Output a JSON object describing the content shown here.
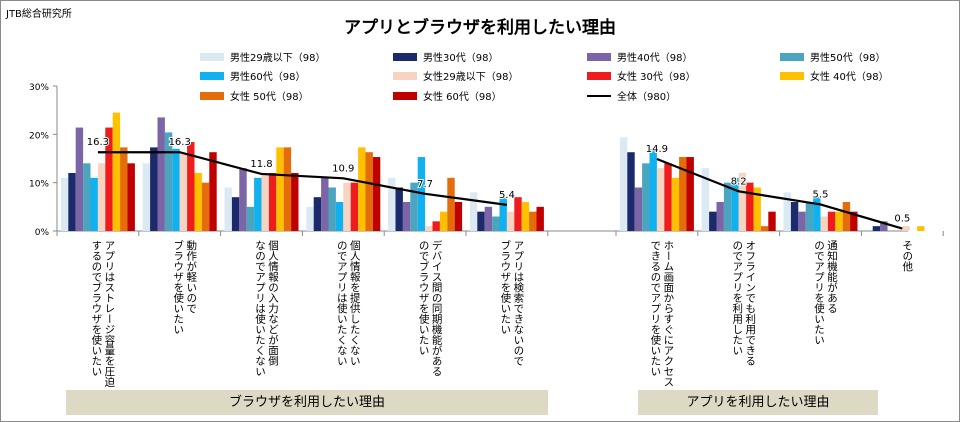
{
  "source": "JTB総合研究所",
  "colors": {
    "total_line": "#000000",
    "axis": "#888888",
    "banner": "#ddd9c4"
  },
  "chart_data": {
    "type": "bar",
    "title": "アプリとブラウザを利用したい理由",
    "ylim": [
      0,
      30
    ],
    "yticks": [
      "0%",
      "10%",
      "20%",
      "30%"
    ],
    "grid": false,
    "legend_position": "top",
    "groups": [
      {
        "label": "ブラウザを利用したい理由",
        "categories": [
          0,
          1,
          2,
          3,
          4,
          5
        ]
      },
      {
        "label": "アプリを利用したい理由",
        "categories": [
          6,
          7,
          8,
          9
        ]
      }
    ],
    "categories": [
      [
        "アプリはストレージ容量を圧迫",
        "するのでブラウザを使いたい"
      ],
      [
        "動作が軽いので",
        "ブラウザを使いたい"
      ],
      [
        "個人情報の入力などが面倒",
        "なのでアプリは使いたくない"
      ],
      [
        "個人情報を提供したくない",
        "のでアプリは使いたくない"
      ],
      [
        "デバイス間の同期機能がある",
        "のでブラウザを使いたい"
      ],
      [
        "アプリは検索できないので",
        "ブラウザを使いたい"
      ],
      [
        "ホーム画面からすぐにアクセス",
        "できるのでアプリを使いたい"
      ],
      [
        "オフラインでも利用できる",
        "のでアプリを利用したい"
      ],
      [
        "通知機能がある",
        "のでアプリを使いたい"
      ],
      [
        "その他"
      ]
    ],
    "series": [
      {
        "name": "男性29歳以下（98）",
        "color": "#dbe9f3",
        "values": [
          11,
          14,
          9,
          5,
          11,
          8,
          19.4,
          13,
          8,
          0
        ]
      },
      {
        "name": "男性30代（98）",
        "color": "#1a2a6b",
        "values": [
          12,
          17.3,
          7,
          7,
          9,
          4,
          16.3,
          4,
          6,
          1
        ]
      },
      {
        "name": "男性40代（98）",
        "color": "#7c65a6",
        "values": [
          21.4,
          23.5,
          13,
          11,
          6,
          5,
          9,
          6,
          4,
          2
        ]
      },
      {
        "name": "男性50代（98）",
        "color": "#4ba5bf",
        "values": [
          14,
          20.4,
          5,
          9,
          10,
          3,
          14,
          10,
          6,
          0
        ]
      },
      {
        "name": "男性60代（98）",
        "color": "#11b0ee",
        "values": [
          11,
          17,
          11,
          6,
          15.3,
          7,
          17,
          11,
          7,
          0
        ]
      },
      {
        "name": "女性29歳以下（98）",
        "color": "#f7d3c1",
        "values": [
          14,
          16,
          12,
          10,
          1,
          4,
          13,
          12,
          3,
          1
        ]
      },
      {
        "name": "女性 30代（98）",
        "color": "#ee1c1c",
        "values": [
          21.4,
          18.4,
          12,
          10,
          2,
          7,
          14,
          10,
          4,
          0
        ]
      },
      {
        "name": "女性 40代（98）",
        "color": "#ffc000",
        "values": [
          24.5,
          12,
          17.3,
          17.3,
          4,
          6,
          11,
          9,
          4,
          1
        ]
      },
      {
        "name": "女性 50代（98）",
        "color": "#e46c0a",
        "values": [
          17.3,
          10,
          17.3,
          16.3,
          11,
          4,
          15.3,
          1,
          6,
          0
        ]
      },
      {
        "name": "女性 60代（98）",
        "color": "#c00000",
        "values": [
          14,
          16.3,
          12,
          15.3,
          6,
          5,
          15.3,
          4,
          4,
          0
        ]
      }
    ],
    "total": {
      "name": "全体（980）",
      "color": "#000000",
      "values": [
        16.3,
        16.3,
        11.8,
        10.9,
        7.7,
        5.4,
        14.9,
        8.2,
        5.5,
        0.5
      ]
    }
  }
}
